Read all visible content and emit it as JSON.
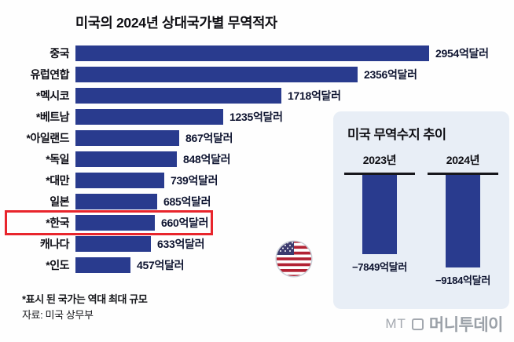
{
  "title": "미국의 2024년 상대국가별 무역적자",
  "chart_data": [
    {
      "type": "bar",
      "orientation": "horizontal",
      "title": "미국의 2024년 상대국가별 무역적자",
      "categories": [
        "중국",
        "유럽연합",
        "*멕시코",
        "*베트남",
        "*아일랜드",
        "*독일",
        "*대만",
        "일본",
        "*한국",
        "캐나다",
        "*인도"
      ],
      "values": [
        2954,
        2356,
        1718,
        1235,
        867,
        848,
        739,
        685,
        660,
        633,
        457
      ],
      "value_labels": [
        "2954억달러",
        "2356억달러",
        "1718억달러",
        "1235억달러",
        "867억달러",
        "848억달러",
        "739억달러",
        "685억달러",
        "660억달러",
        "633억달러",
        "457억달러"
      ],
      "unit": "억달러",
      "highlighted_category": "*한국",
      "bar_color": "#293b8e",
      "highlight_box_color": "#e8252c",
      "xlim": [
        0,
        3000
      ],
      "grid": false,
      "legend": false
    },
    {
      "type": "bar",
      "orientation": "vertical-negative",
      "title": "미국 무역수지 추이",
      "categories": [
        "2023년",
        "2024년"
      ],
      "values": [
        -7849,
        -9184
      ],
      "value_labels": [
        "−7849억달러",
        "−9184억달러"
      ],
      "unit": "억달러",
      "bar_color": "#293b8e",
      "panel_bg": "#e8eef6",
      "grid": false,
      "legend": false
    }
  ],
  "footnotes": {
    "record_note": "*표시 된 국가는 역대 최대 규모",
    "source_note": "자료: 미국 상무부"
  },
  "logo": {
    "mt": "MT",
    "name": "머니투데이"
  },
  "colors": {
    "bar": "#293b8e",
    "highlight_box": "#e8252c",
    "inset_bg": "#e8eef6",
    "logo_gray": "#9ba1a8"
  }
}
